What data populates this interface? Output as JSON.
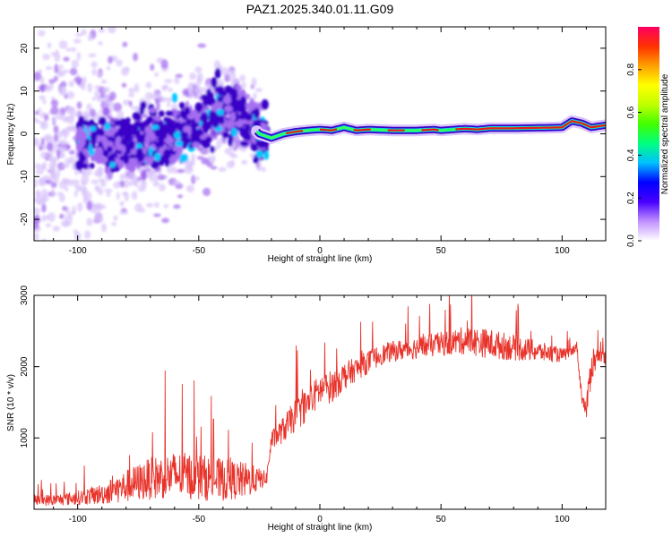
{
  "title": "PAZ1.2025.340.01.11.G09",
  "colors": {
    "snr_line": "#e8332b",
    "spectro_core": "#3a00c8",
    "spectro_glow": "#a46cf0",
    "spectro_faint": "#d9c4fb",
    "spectro_track_mid": "#00c8ff",
    "spectro_track_peak": "#e81a1a"
  },
  "chart_data": [
    {
      "type": "heatmap",
      "id": "spectrogram",
      "xlabel": "Height of straight line (km)",
      "ylabel": "Frequency (Hz)",
      "xlim": [
        -118,
        118
      ],
      "ylim": [
        -25,
        25
      ],
      "xticks": [
        -100,
        -50,
        0,
        50,
        100
      ],
      "xtick_labels": [
        "-100",
        "-50",
        "0",
        "50",
        "100"
      ],
      "yticks": [
        -20,
        -10,
        0,
        10,
        20
      ],
      "ytick_labels": [
        "-20",
        "-10",
        "0",
        "10",
        "20"
      ],
      "description_of_values": "normalized spectral amplitude; scattered weak energy below ~-30 km, narrow strong line near 0-2 Hz above ~-25 km",
      "ridge": {
        "x": [
          -118,
          -100,
          -80,
          -70,
          -60,
          -50,
          -40,
          -35,
          -30,
          -25,
          -20,
          -15,
          -10,
          -5,
          0,
          5,
          10,
          15,
          20,
          30,
          40,
          47,
          50,
          55,
          60,
          65,
          70,
          80,
          90,
          100,
          104,
          108,
          112,
          118
        ],
        "freq": [
          -3,
          -2.5,
          -2,
          -1,
          0,
          2,
          5,
          5,
          3,
          0,
          -1,
          0,
          0.5,
          0.8,
          1,
          0.8,
          1.5,
          0.8,
          1,
          0.8,
          0.8,
          1,
          0.8,
          1,
          1.2,
          1,
          1.3,
          1.3,
          1.4,
          1.5,
          3,
          2.5,
          1.5,
          2
        ]
      },
      "colorbar": {
        "label": "Normalized spectral amplitude",
        "range": [
          0,
          1
        ],
        "ticks": [
          0.0,
          0.2,
          0.4,
          0.6,
          0.8
        ],
        "tick_labels": [
          "0.0",
          "0.2",
          "0.4",
          "0.6",
          "0.8"
        ],
        "colors": [
          "#ffffff",
          "#c090ff",
          "#4800ff",
          "#0000ff",
          "#00c0ff",
          "#00ff80",
          "#40ff00",
          "#c0ff00",
          "#ffff00",
          "#ffa000",
          "#ff3000",
          "#ff0060"
        ]
      }
    },
    {
      "type": "line",
      "id": "snr",
      "xlabel": "Height of straight line (km)",
      "ylabel": "SNR (10 * v/v)",
      "xlim": [
        -118,
        118
      ],
      "ylim": [
        0,
        3000
      ],
      "xticks": [
        -100,
        -50,
        0,
        50,
        100
      ],
      "xtick_labels": [
        "-100",
        "-50",
        "0",
        "50",
        "100"
      ],
      "yticks": [
        1000,
        2000,
        3000
      ],
      "ytick_labels": [
        "1000",
        "2000",
        "3000"
      ],
      "series": [
        {
          "name": "SNR",
          "envelope_x": [
            -118,
            -110,
            -100,
            -90,
            -80,
            -70,
            -60,
            -50,
            -40,
            -30,
            -22,
            -20,
            -15,
            -10,
            -5,
            0,
            5,
            10,
            15,
            20,
            25,
            30,
            40,
            50,
            60,
            70,
            80,
            90,
            100,
            104,
            106,
            108,
            110,
            112,
            115,
            118
          ],
          "envelope_mean": [
            120,
            120,
            150,
            200,
            300,
            400,
            450,
            420,
            380,
            380,
            420,
            950,
            1100,
            1300,
            1450,
            1650,
            1700,
            1850,
            1950,
            2050,
            2150,
            2200,
            2250,
            2300,
            2350,
            2300,
            2250,
            2200,
            2150,
            2200,
            2300,
            1600,
            1350,
            2000,
            2150,
            2100
          ],
          "envelope_spread": [
            120,
            120,
            150,
            220,
            350,
            450,
            500,
            500,
            450,
            380,
            150,
            200,
            280,
            350,
            350,
            350,
            350,
            300,
            250,
            250,
            220,
            220,
            240,
            260,
            300,
            320,
            280,
            220,
            150,
            100,
            100,
            150,
            200,
            450,
            150,
            150
          ]
        }
      ]
    }
  ]
}
